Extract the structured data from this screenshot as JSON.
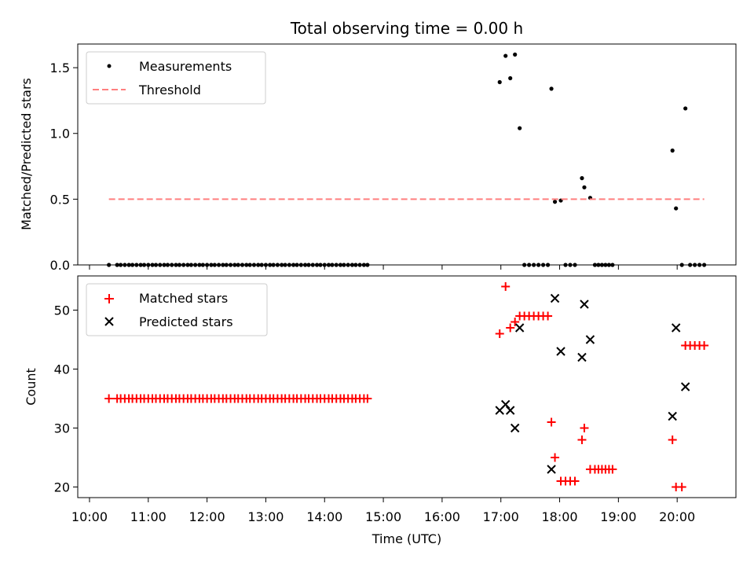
{
  "chart_data": {
    "type": "scatter",
    "title": "Total observing time = 0.00 h",
    "xlabel": "Time (UTC)",
    "x_unit": "hours UTC",
    "xlim": [
      9.8,
      21.0
    ],
    "x_ticks": [
      10,
      11,
      12,
      13,
      14,
      15,
      16,
      17,
      18,
      19,
      20
    ],
    "x_tick_labels": [
      "10:00",
      "11:00",
      "12:00",
      "13:00",
      "14:00",
      "15:00",
      "16:00",
      "17:00",
      "18:00",
      "19:00",
      "20:00"
    ],
    "panels": [
      {
        "ylabel": "Matched/Predicted stars",
        "ylim": [
          0,
          1.68
        ],
        "y_ticks": [
          0,
          0.5,
          1,
          1.5
        ],
        "y_tick_labels": [
          "0.0",
          "0.5",
          "1.0",
          "1.5"
        ],
        "legend_position": "upper-left",
        "series": [
          {
            "name": "Measurements",
            "marker": "dot",
            "color": "#000000",
            "points": [
              [
                10.33,
                0
              ],
              [
                10.47,
                0
              ],
              [
                10.53,
                0
              ],
              [
                10.6,
                0
              ],
              [
                10.67,
                0
              ],
              [
                10.73,
                0
              ],
              [
                10.8,
                0
              ],
              [
                10.87,
                0
              ],
              [
                10.93,
                0
              ],
              [
                11.0,
                0
              ],
              [
                11.07,
                0
              ],
              [
                11.13,
                0
              ],
              [
                11.2,
                0
              ],
              [
                11.27,
                0
              ],
              [
                11.33,
                0
              ],
              [
                11.4,
                0
              ],
              [
                11.47,
                0
              ],
              [
                11.53,
                0
              ],
              [
                11.6,
                0
              ],
              [
                11.67,
                0
              ],
              [
                11.73,
                0
              ],
              [
                11.8,
                0
              ],
              [
                11.87,
                0
              ],
              [
                11.93,
                0
              ],
              [
                12.0,
                0
              ],
              [
                12.07,
                0
              ],
              [
                12.13,
                0
              ],
              [
                12.2,
                0
              ],
              [
                12.27,
                0
              ],
              [
                12.33,
                0
              ],
              [
                12.4,
                0
              ],
              [
                12.47,
                0
              ],
              [
                12.53,
                0
              ],
              [
                12.6,
                0
              ],
              [
                12.67,
                0
              ],
              [
                12.73,
                0
              ],
              [
                12.8,
                0
              ],
              [
                12.87,
                0
              ],
              [
                12.93,
                0
              ],
              [
                13.0,
                0
              ],
              [
                13.07,
                0
              ],
              [
                13.13,
                0
              ],
              [
                13.2,
                0
              ],
              [
                13.27,
                0
              ],
              [
                13.33,
                0
              ],
              [
                13.4,
                0
              ],
              [
                13.47,
                0
              ],
              [
                13.53,
                0
              ],
              [
                13.6,
                0
              ],
              [
                13.67,
                0
              ],
              [
                13.73,
                0
              ],
              [
                13.8,
                0
              ],
              [
                13.87,
                0
              ],
              [
                13.93,
                0
              ],
              [
                14.0,
                0
              ],
              [
                14.07,
                0
              ],
              [
                14.13,
                0
              ],
              [
                14.2,
                0
              ],
              [
                14.27,
                0
              ],
              [
                14.33,
                0
              ],
              [
                14.4,
                0
              ],
              [
                14.47,
                0
              ],
              [
                14.53,
                0
              ],
              [
                14.6,
                0
              ],
              [
                14.67,
                0
              ],
              [
                14.73,
                0
              ],
              [
                16.98,
                1.39
              ],
              [
                17.08,
                1.59
              ],
              [
                17.16,
                1.42
              ],
              [
                17.24,
                1.6
              ],
              [
                17.32,
                1.04
              ],
              [
                17.4,
                0
              ],
              [
                17.48,
                0
              ],
              [
                17.56,
                0
              ],
              [
                17.64,
                0
              ],
              [
                17.72,
                0
              ],
              [
                17.8,
                0
              ],
              [
                17.86,
                1.34
              ],
              [
                17.92,
                0.48
              ],
              [
                18.02,
                0.49
              ],
              [
                18.1,
                0
              ],
              [
                18.18,
                0
              ],
              [
                18.26,
                0
              ],
              [
                18.38,
                0.66
              ],
              [
                18.42,
                0.59
              ],
              [
                18.52,
                0.51
              ],
              [
                18.6,
                0
              ],
              [
                18.66,
                0
              ],
              [
                18.72,
                0
              ],
              [
                18.78,
                0
              ],
              [
                18.84,
                0
              ],
              [
                18.9,
                0
              ],
              [
                19.92,
                0.87
              ],
              [
                19.98,
                0.43
              ],
              [
                20.08,
                0
              ],
              [
                20.14,
                1.19
              ],
              [
                20.22,
                0
              ],
              [
                20.3,
                0
              ],
              [
                20.38,
                0
              ],
              [
                20.46,
                0
              ]
            ]
          },
          {
            "name": "Threshold",
            "marker": "dashed-line",
            "color": "#ff7f7f",
            "points": [
              [
                10.33,
                0.5
              ],
              [
                20.46,
                0.5
              ]
            ]
          }
        ]
      },
      {
        "ylabel": "Count",
        "ylim": [
          18.2,
          55.8
        ],
        "y_ticks": [
          20,
          30,
          40,
          50
        ],
        "y_tick_labels": [
          "20",
          "30",
          "40",
          "50"
        ],
        "legend_position": "upper-left",
        "series": [
          {
            "name": "Matched stars",
            "marker": "plus",
            "color": "#ff0000",
            "points": [
              [
                10.33,
                35
              ],
              [
                10.47,
                35
              ],
              [
                10.53,
                35
              ],
              [
                10.6,
                35
              ],
              [
                10.67,
                35
              ],
              [
                10.73,
                35
              ],
              [
                10.8,
                35
              ],
              [
                10.87,
                35
              ],
              [
                10.93,
                35
              ],
              [
                11.0,
                35
              ],
              [
                11.07,
                35
              ],
              [
                11.13,
                35
              ],
              [
                11.2,
                35
              ],
              [
                11.27,
                35
              ],
              [
                11.33,
                35
              ],
              [
                11.4,
                35
              ],
              [
                11.47,
                35
              ],
              [
                11.53,
                35
              ],
              [
                11.6,
                35
              ],
              [
                11.67,
                35
              ],
              [
                11.73,
                35
              ],
              [
                11.8,
                35
              ],
              [
                11.87,
                35
              ],
              [
                11.93,
                35
              ],
              [
                12.0,
                35
              ],
              [
                12.07,
                35
              ],
              [
                12.13,
                35
              ],
              [
                12.2,
                35
              ],
              [
                12.27,
                35
              ],
              [
                12.33,
                35
              ],
              [
                12.4,
                35
              ],
              [
                12.47,
                35
              ],
              [
                12.53,
                35
              ],
              [
                12.6,
                35
              ],
              [
                12.67,
                35
              ],
              [
                12.73,
                35
              ],
              [
                12.8,
                35
              ],
              [
                12.87,
                35
              ],
              [
                12.93,
                35
              ],
              [
                13.0,
                35
              ],
              [
                13.07,
                35
              ],
              [
                13.13,
                35
              ],
              [
                13.2,
                35
              ],
              [
                13.27,
                35
              ],
              [
                13.33,
                35
              ],
              [
                13.4,
                35
              ],
              [
                13.47,
                35
              ],
              [
                13.53,
                35
              ],
              [
                13.6,
                35
              ],
              [
                13.67,
                35
              ],
              [
                13.73,
                35
              ],
              [
                13.8,
                35
              ],
              [
                13.87,
                35
              ],
              [
                13.93,
                35
              ],
              [
                14.0,
                35
              ],
              [
                14.07,
                35
              ],
              [
                14.13,
                35
              ],
              [
                14.2,
                35
              ],
              [
                14.27,
                35
              ],
              [
                14.33,
                35
              ],
              [
                14.4,
                35
              ],
              [
                14.47,
                35
              ],
              [
                14.53,
                35
              ],
              [
                14.6,
                35
              ],
              [
                14.67,
                35
              ],
              [
                14.73,
                35
              ],
              [
                16.98,
                46
              ],
              [
                17.08,
                54
              ],
              [
                17.16,
                47
              ],
              [
                17.24,
                48
              ],
              [
                17.32,
                49
              ],
              [
                17.4,
                49
              ],
              [
                17.48,
                49
              ],
              [
                17.56,
                49
              ],
              [
                17.64,
                49
              ],
              [
                17.72,
                49
              ],
              [
                17.8,
                49
              ],
              [
                17.86,
                31
              ],
              [
                17.92,
                25
              ],
              [
                18.02,
                21
              ],
              [
                18.1,
                21
              ],
              [
                18.18,
                21
              ],
              [
                18.26,
                21
              ],
              [
                18.38,
                28
              ],
              [
                18.42,
                30
              ],
              [
                18.52,
                23
              ],
              [
                18.6,
                23
              ],
              [
                18.66,
                23
              ],
              [
                18.72,
                23
              ],
              [
                18.78,
                23
              ],
              [
                18.84,
                23
              ],
              [
                18.9,
                23
              ],
              [
                19.92,
                28
              ],
              [
                19.98,
                20
              ],
              [
                20.08,
                20
              ],
              [
                20.14,
                44
              ],
              [
                20.22,
                44
              ],
              [
                20.3,
                44
              ],
              [
                20.38,
                44
              ],
              [
                20.46,
                44
              ]
            ]
          },
          {
            "name": "Predicted stars",
            "marker": "x",
            "color": "#000000",
            "points": [
              [
                16.98,
                33
              ],
              [
                17.08,
                34
              ],
              [
                17.16,
                33
              ],
              [
                17.24,
                30
              ],
              [
                17.32,
                47
              ],
              [
                17.86,
                23
              ],
              [
                17.92,
                52
              ],
              [
                18.02,
                43
              ],
              [
                18.38,
                42
              ],
              [
                18.42,
                51
              ],
              [
                18.52,
                45
              ],
              [
                19.92,
                32
              ],
              [
                19.98,
                47
              ],
              [
                20.14,
                37
              ]
            ]
          }
        ]
      }
    ]
  }
}
